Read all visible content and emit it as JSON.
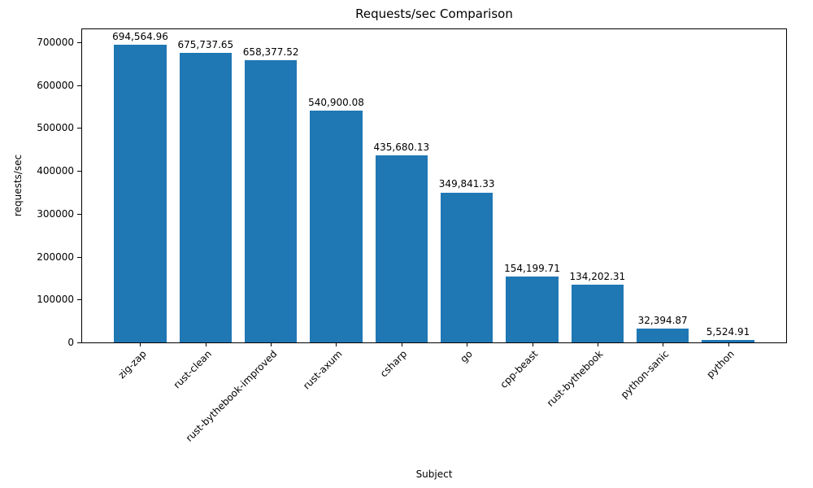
{
  "chart_data": {
    "type": "bar",
    "title": "Requests/sec Comparison",
    "xlabel": "Subject",
    "ylabel": "requests/sec",
    "categories": [
      "zig-zap",
      "rust-clean",
      "rust-bythebook-improved",
      "rust-axum",
      "csharp",
      "go",
      "cpp-beast",
      "rust-bythebook",
      "python-sanic",
      "python"
    ],
    "values": [
      694564.96,
      675737.65,
      658377.52,
      540900.08,
      435680.13,
      349841.33,
      154199.71,
      134202.31,
      32394.87,
      5524.91
    ],
    "value_labels": [
      "694,564.96",
      "675,737.65",
      "658,377.52",
      "540,900.08",
      "435,680.13",
      "349,841.33",
      "154,199.71",
      "134,202.31",
      "32,394.87",
      "5,524.91"
    ],
    "bar_color": "#1f77b4",
    "ylim": [
      0,
      730000
    ],
    "yticks": [
      0,
      100000,
      200000,
      300000,
      400000,
      500000,
      600000,
      700000
    ],
    "grid": false,
    "legend_position": "none"
  }
}
